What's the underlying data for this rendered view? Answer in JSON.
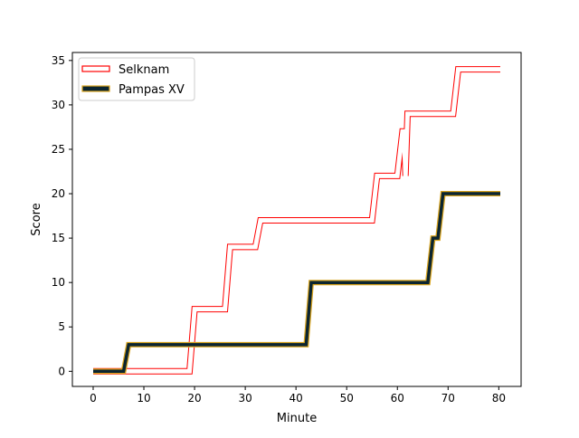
{
  "chart_data": {
    "type": "line",
    "title": "",
    "xlabel": "Minute",
    "ylabel": "Score",
    "xlim": [
      -4.1,
      84.4
    ],
    "ylim": [
      -1.7,
      35.9
    ],
    "xticks": [
      0,
      10,
      20,
      30,
      40,
      50,
      60,
      70,
      80
    ],
    "yticks": [
      0,
      5,
      10,
      15,
      20,
      25,
      30,
      35
    ],
    "grid": false,
    "legend_position": "upper-left",
    "series": [
      {
        "name": "Selknam",
        "style": "outlined",
        "color": "#ff0000",
        "x": [
          0,
          6,
          19,
          20,
          26,
          27,
          32,
          33,
          55,
          56,
          60,
          61,
          61.3,
          61.6,
          62,
          71,
          72,
          80.3
        ],
        "y": [
          0,
          0,
          0,
          7,
          7,
          14,
          14,
          17,
          17,
          22,
          22,
          27,
          27,
          22,
          29,
          29,
          34,
          34
        ]
      },
      {
        "name": "Pampas XV",
        "style": "thick",
        "color": "#0b2530",
        "edge_color": "#daa520",
        "x": [
          0,
          6,
          7,
          42,
          43,
          66,
          67,
          68,
          69,
          80.3
        ],
        "y": [
          0,
          0,
          3,
          3,
          10,
          10,
          15,
          15,
          20,
          20
        ]
      }
    ]
  }
}
